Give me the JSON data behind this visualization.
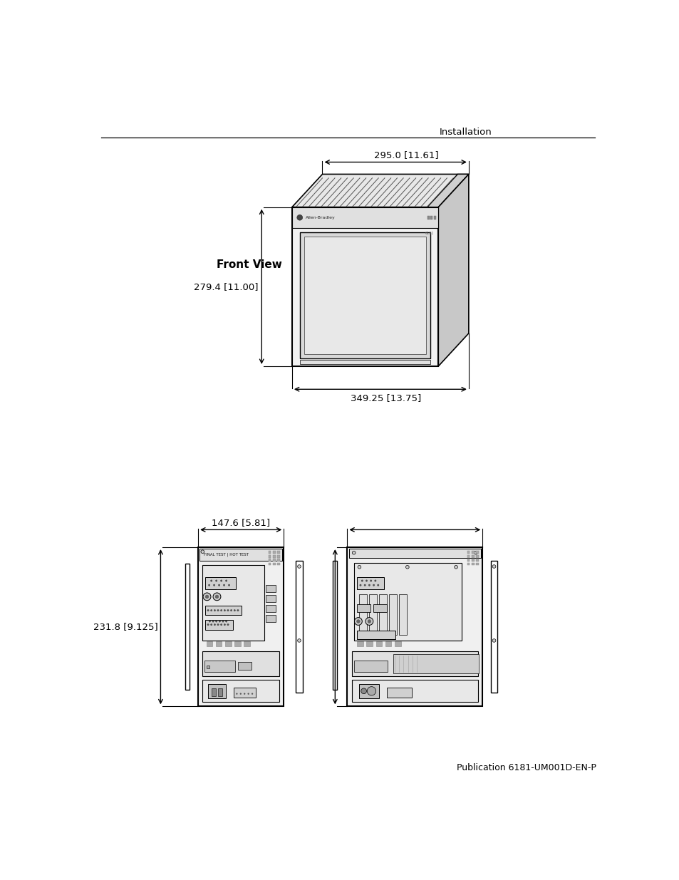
{
  "background_color": "#ffffff",
  "header_text": "Installation",
  "footer_text": "Publication 6181-UM001D-EN-P",
  "front_view_label": "Front View",
  "dim_top_label": "295.0 [11.61]",
  "dim_side_label": "279.4 [11.00]",
  "dim_bottom_label": "349.25 [13.75]",
  "side_dim1_label": "147.6 [5.81]",
  "side_dim2_label": "231.8 [9.125]",
  "font_color": "#000000",
  "line_color": "#000000"
}
